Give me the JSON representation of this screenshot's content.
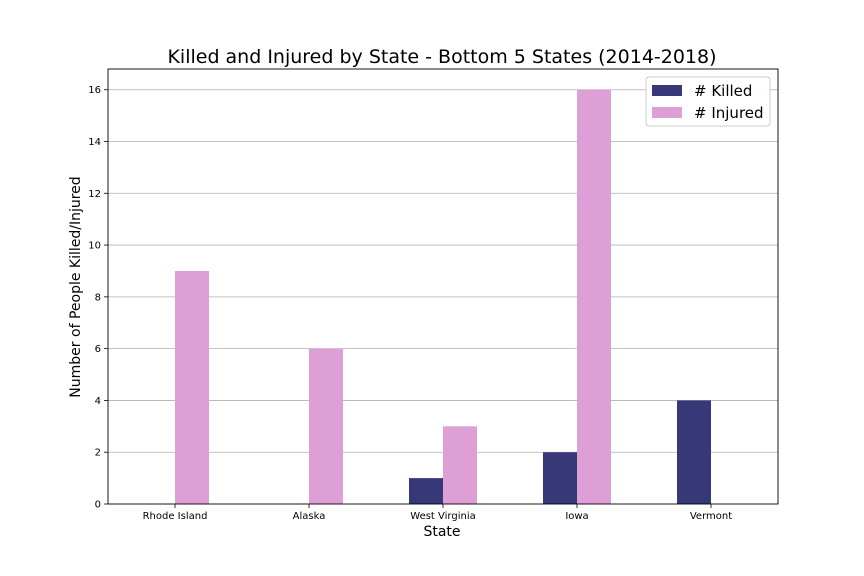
{
  "chart_data": {
    "type": "bar",
    "title": "Killed and Injured by State - Bottom 5 States (2014-2018)",
    "xlabel": "State",
    "ylabel": "Number of People Killed/Injured",
    "categories": [
      "Rhode Island",
      "Alaska",
      "West Virginia",
      "Iowa",
      "Vermont"
    ],
    "series": [
      {
        "name": "# Killed",
        "values": [
          0,
          0,
          1,
          2,
          4
        ],
        "color": "#373878"
      },
      {
        "name": "# Injured",
        "values": [
          9,
          6,
          3,
          16,
          0
        ],
        "color": "#de9ed6"
      }
    ],
    "ylim": [
      0,
      16.8
    ],
    "yticks": [
      0,
      2,
      4,
      6,
      8,
      10,
      12,
      14,
      16
    ],
    "grid": "y",
    "legend": "top-right"
  }
}
